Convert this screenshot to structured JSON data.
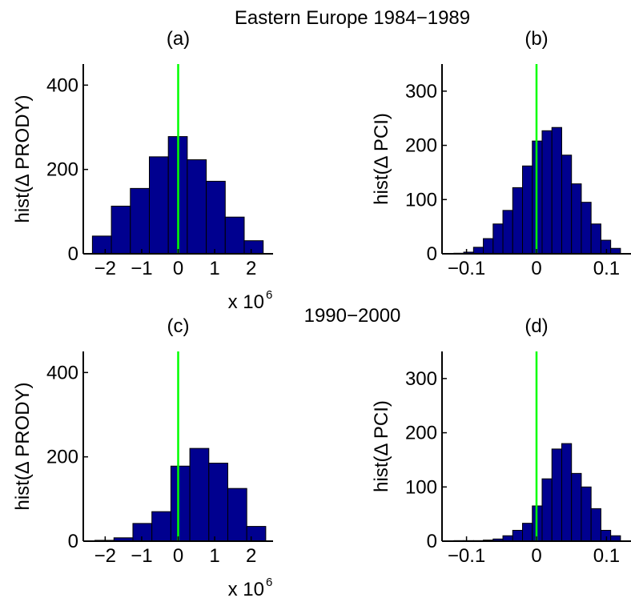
{
  "figure": {
    "title": "Eastern Europe 1984−1989",
    "subtitle": "1990−2000"
  },
  "colors": {
    "bar_fill": "#00008f",
    "bar_stroke": "#000000",
    "zero_line": "#00ff00",
    "axis": "#000000"
  },
  "chart_data": [
    {
      "id": "a",
      "type": "bar",
      "panel_label": "(a)",
      "ylabel": "hist(Δ PRODY)",
      "x_exponent_base": "x 10",
      "x_exponent_power": "6",
      "xlim": [
        -2.6,
        2.6
      ],
      "ylim": [
        0,
        450
      ],
      "xticks": [
        -2,
        -1,
        0,
        1,
        2
      ],
      "xtick_labels": [
        "−2",
        "−1",
        "0",
        "1",
        "2"
      ],
      "yticks": [
        0,
        200,
        400
      ],
      "ytick_labels": [
        "0",
        "200",
        "400"
      ],
      "bin_edges": [
        -2.35,
        -1.83,
        -1.31,
        -0.79,
        -0.27,
        0.25,
        0.77,
        1.29,
        1.81,
        2.33
      ],
      "values": [
        42,
        113,
        155,
        230,
        278,
        223,
        172,
        87,
        31
      ],
      "zero_line_x": 0
    },
    {
      "id": "b",
      "type": "bar",
      "panel_label": "(b)",
      "ylabel": "hist(Δ PCI)",
      "xlim": [
        -0.135,
        0.135
      ],
      "ylim": [
        0,
        350
      ],
      "xticks": [
        -0.1,
        0,
        0.1
      ],
      "xtick_labels": [
        "−0.1",
        "0",
        "0.1"
      ],
      "yticks": [
        0,
        100,
        200,
        300
      ],
      "ytick_labels": [
        "0",
        "100",
        "200",
        "300"
      ],
      "bin_edges": [
        -0.118,
        -0.104,
        -0.09,
        -0.076,
        -0.062,
        -0.048,
        -0.034,
        -0.02,
        -0.006,
        0.008,
        0.022,
        0.036,
        0.05,
        0.064,
        0.078,
        0.092,
        0.106,
        0.12
      ],
      "values": [
        1,
        3,
        12,
        28,
        55,
        80,
        122,
        162,
        208,
        227,
        233,
        182,
        129,
        95,
        55,
        25,
        10
      ],
      "zero_line_x": 0
    },
    {
      "id": "c",
      "type": "bar",
      "panel_label": "(c)",
      "ylabel": "hist(Δ PRODY)",
      "x_exponent_base": "x 10",
      "x_exponent_power": "6",
      "xlim": [
        -2.6,
        2.6
      ],
      "ylim": [
        0,
        450
      ],
      "xticks": [
        -2,
        -1,
        0,
        1,
        2
      ],
      "xtick_labels": [
        "−2",
        "−1",
        "0",
        "1",
        "2"
      ],
      "yticks": [
        0,
        200,
        400
      ],
      "ytick_labels": [
        "0",
        "200",
        "400"
      ],
      "bin_edges": [
        -2.28,
        -1.76,
        -1.24,
        -0.72,
        -0.2,
        0.32,
        0.84,
        1.36,
        1.88,
        2.4
      ],
      "values": [
        2,
        8,
        42,
        70,
        178,
        220,
        185,
        125,
        35
      ],
      "zero_line_x": 0
    },
    {
      "id": "d",
      "type": "bar",
      "panel_label": "(d)",
      "ylabel": "hist(Δ PCI)",
      "xlim": [
        -0.135,
        0.135
      ],
      "ylim": [
        0,
        350
      ],
      "xticks": [
        -0.1,
        0,
        0.1
      ],
      "xtick_labels": [
        "−0.1",
        "0",
        "0.1"
      ],
      "yticks": [
        0,
        100,
        200,
        300
      ],
      "ytick_labels": [
        "0",
        "100",
        "200",
        "300"
      ],
      "bin_edges": [
        -0.118,
        -0.104,
        -0.09,
        -0.076,
        -0.062,
        -0.048,
        -0.034,
        -0.02,
        -0.006,
        0.008,
        0.022,
        0.036,
        0.05,
        0.064,
        0.078,
        0.092,
        0.106,
        0.12
      ],
      "values": [
        1,
        1,
        1,
        2,
        4,
        10,
        20,
        33,
        65,
        115,
        170,
        180,
        125,
        100,
        60,
        20,
        10
      ],
      "zero_line_x": 0
    }
  ]
}
